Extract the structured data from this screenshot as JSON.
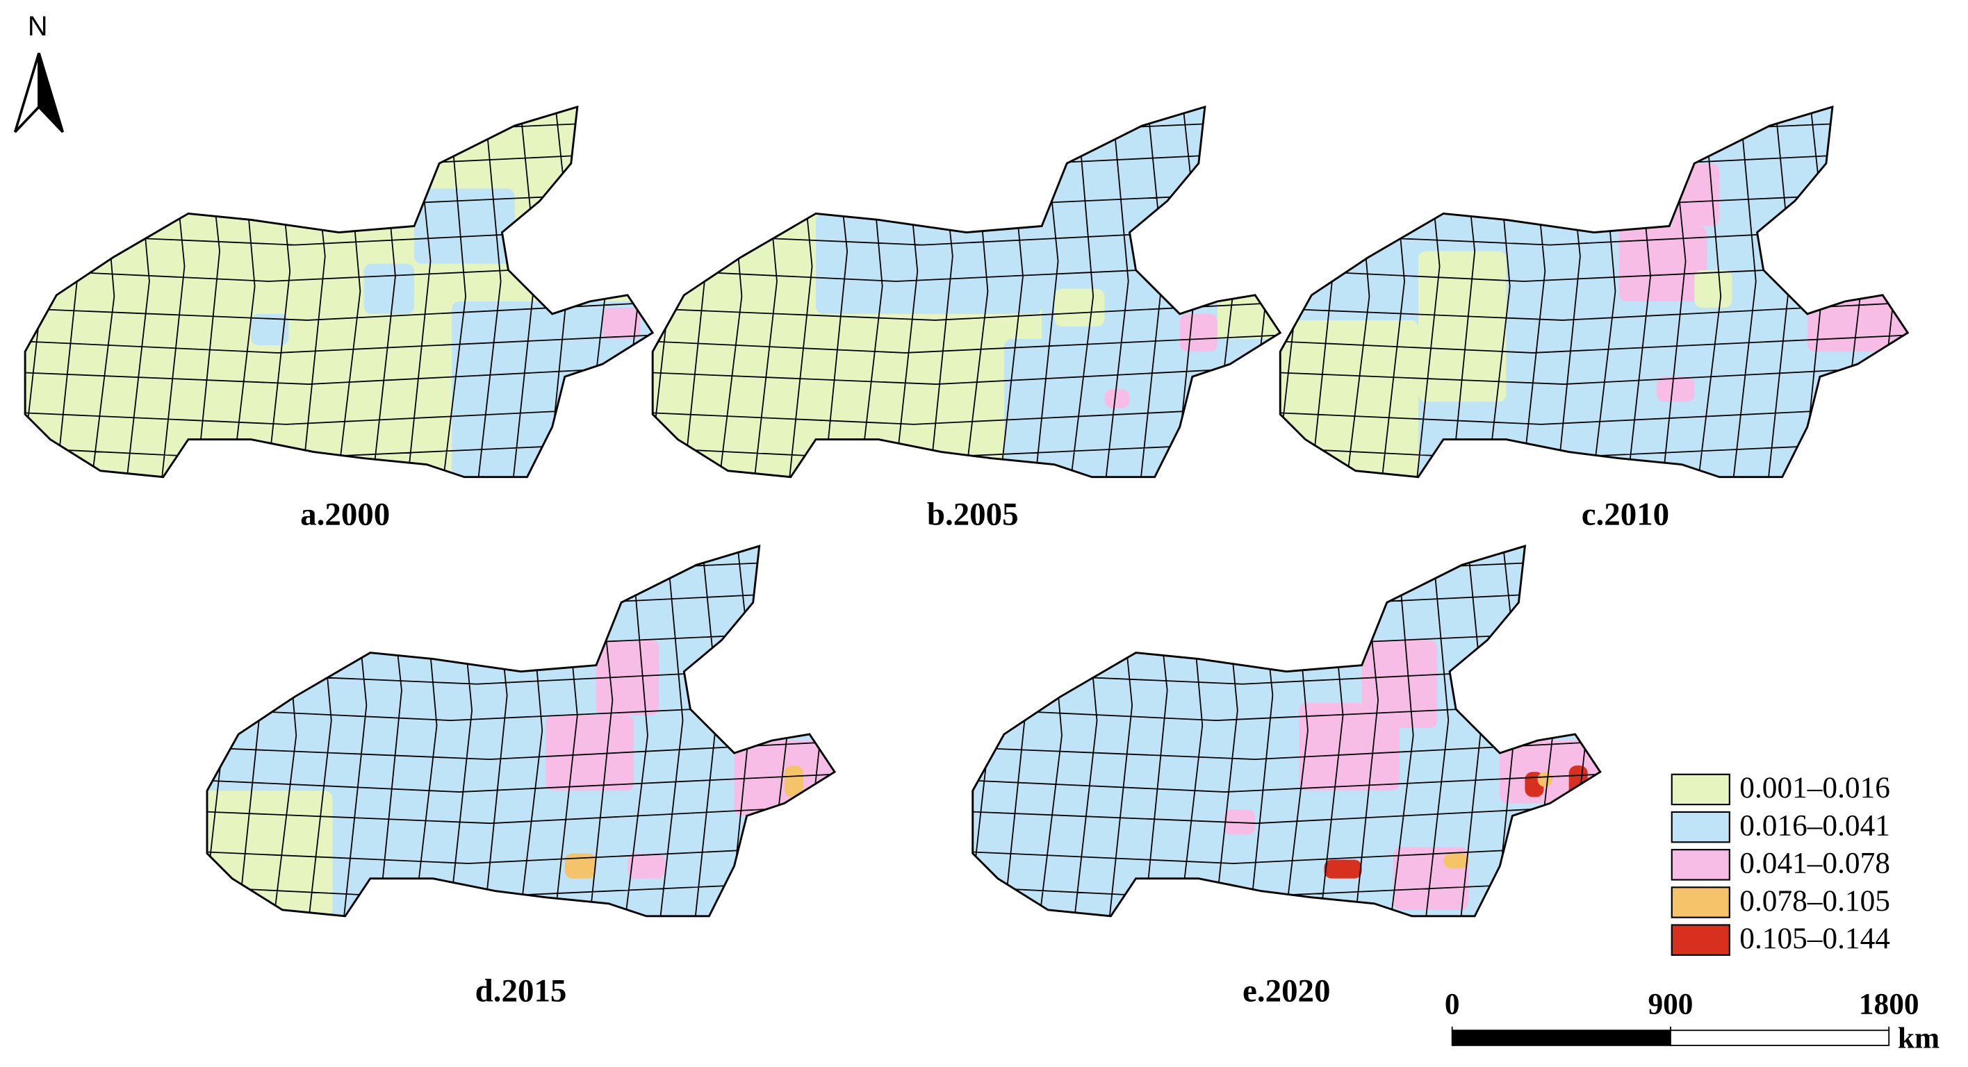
{
  "north": "N",
  "maps": [
    {
      "label": "a.2000"
    },
    {
      "label": "b.2005"
    },
    {
      "label": "c.2010"
    },
    {
      "label": "d.2015"
    },
    {
      "label": "e.2020"
    }
  ],
  "legend": {
    "items": [
      {
        "label": "0.001–0.016",
        "color": "#e6f5c0"
      },
      {
        "label": "0.016–0.041",
        "color": "#bfe3f7"
      },
      {
        "label": "0.041–0.078",
        "color": "#f7bde6"
      },
      {
        "label": "0.078–0.105",
        "color": "#f5c46a"
      },
      {
        "label": "0.105–0.144",
        "color": "#d7301f"
      }
    ]
  },
  "scale_bar": {
    "ticks": [
      0,
      900,
      1800
    ],
    "unit": "km"
  }
}
